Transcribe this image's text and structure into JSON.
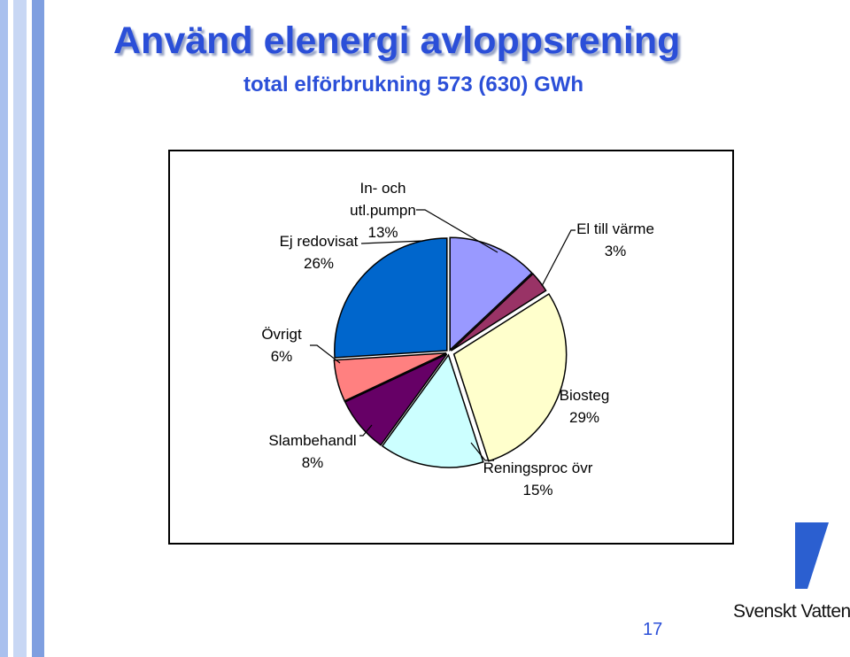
{
  "slide": {
    "title": "Använd elenergi avloppsrening",
    "subtitle": "total elförbrukning 573 (630) GWh",
    "page_number": "17",
    "logo": "Svenskt Vatten"
  },
  "chart_data": {
    "type": "pie",
    "categories": [
      "In- och utl.pumpn",
      "El till värme",
      "Biosteg",
      "Reningsproc övr",
      "Slambehandl",
      "Övrigt",
      "Ej redovisat"
    ],
    "values": [
      13,
      3,
      29,
      15,
      8,
      6,
      26
    ],
    "value_labels": [
      "13%",
      "3%",
      "29%",
      "15%",
      "8%",
      "6%",
      "26%"
    ],
    "colors": [
      "#9999ff",
      "#993366",
      "#ffffcc",
      "#ccffff",
      "#660066",
      "#ff8080",
      "#0066cc"
    ]
  }
}
